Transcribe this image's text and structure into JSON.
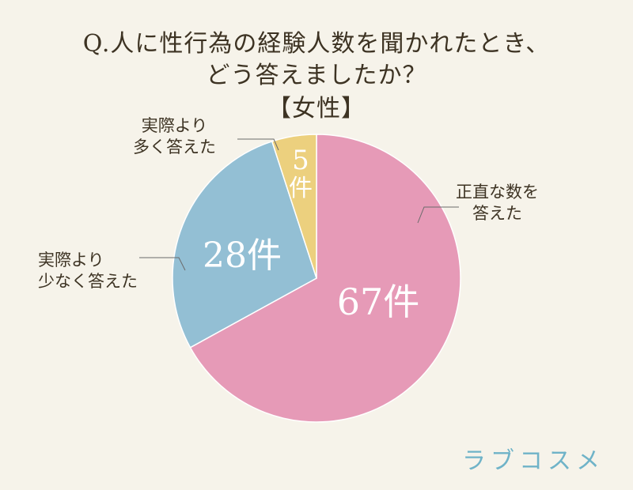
{
  "chart_data": {
    "type": "pie",
    "title_lines": [
      "Q.人に性行為の経験人数を聞かれたとき、",
      "どう答えましたか？",
      "【女性】"
    ],
    "unit": "件",
    "slices": [
      {
        "label_lines": [
          "正直な数を",
          "答えた"
        ],
        "value": 67,
        "value_label": "67件",
        "color": "#e69ab7"
      },
      {
        "label_lines": [
          "実際より",
          "少なく答えた"
        ],
        "value": 28,
        "value_label": "28件",
        "color": "#93bfd4"
      },
      {
        "label_lines": [
          "実際より",
          "多く答えた"
        ],
        "value": 5,
        "value_label_lines": [
          "5",
          "件"
        ],
        "color": "#ecd07e"
      }
    ]
  },
  "brand": {
    "logo_text": "ラブコスメ",
    "logo_color": "#6fb3c8"
  }
}
